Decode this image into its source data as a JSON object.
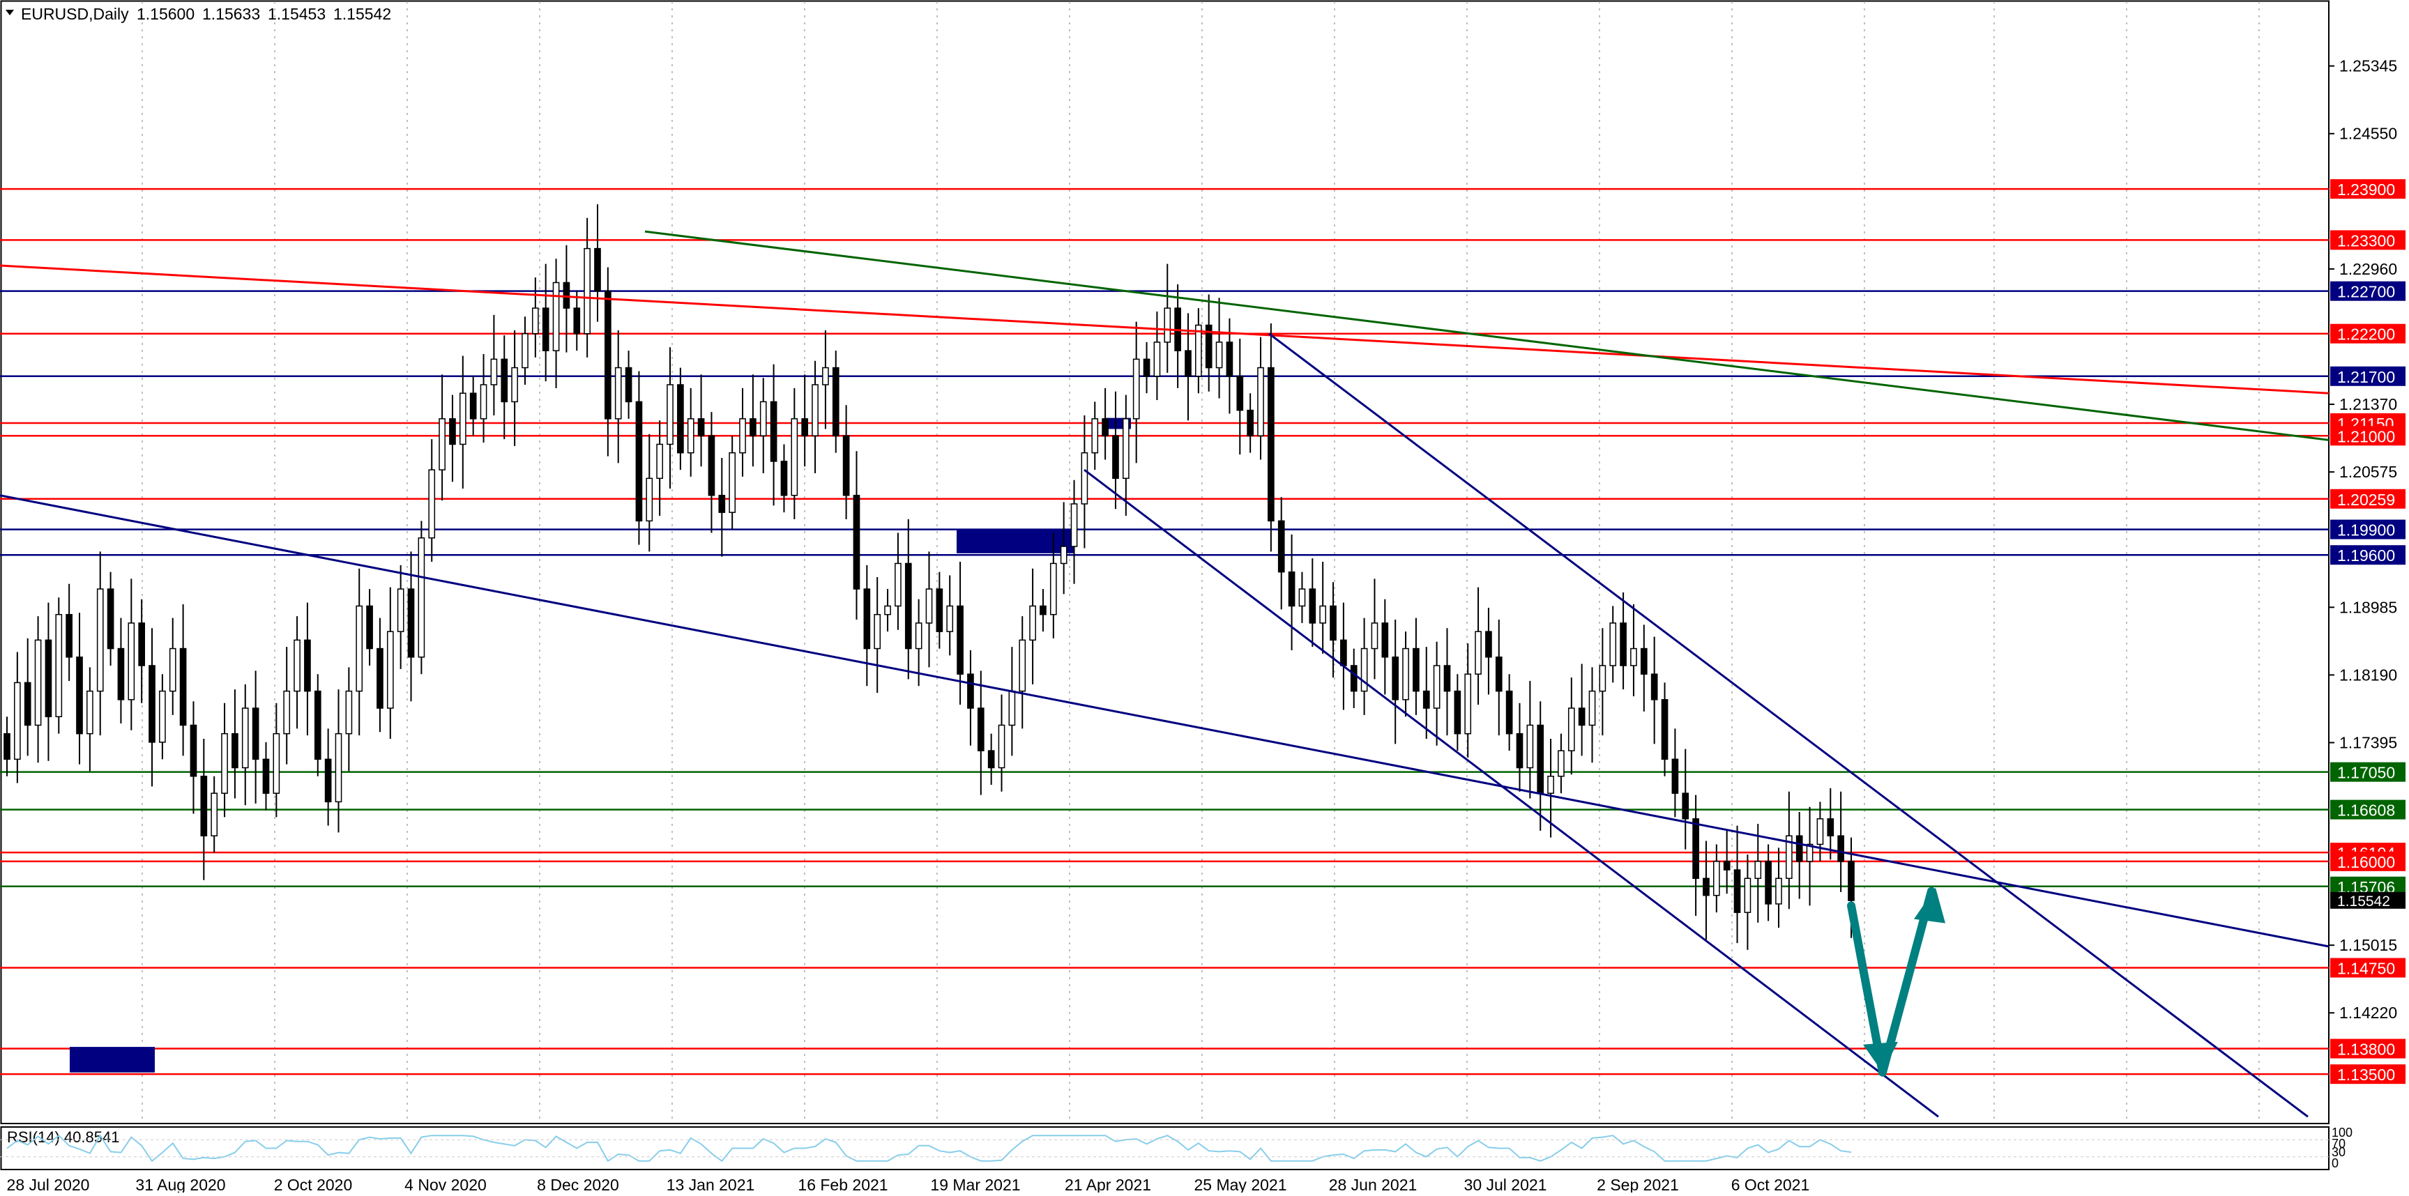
{
  "header": {
    "menu_icon": "triangle-down-icon",
    "symbol": "EURUSD,Daily",
    "open": "1.15600",
    "high": "1.15633",
    "low": "1.15453",
    "close": "1.15542"
  },
  "chart_data": {
    "type": "candlestick",
    "title": "EURUSD,Daily",
    "ylim": [
      1.1292,
      1.2612
    ],
    "y_ticks": [
      "1.25345",
      "1.24550",
      "1.22960",
      "1.21370",
      "1.20575",
      "1.18985",
      "1.18190",
      "1.17395",
      "1.15015",
      "1.14220"
    ],
    "x_ticks": [
      "28 Jul 2020",
      "31 Aug 2020",
      "2 Oct 2020",
      "4 Nov 2020",
      "8 Dec 2020",
      "13 Jan 2021",
      "16 Feb 2021",
      "19 Mar 2021",
      "21 Apr 2021",
      "25 May 2021",
      "28 Jun 2021",
      "30 Jul 2021",
      "2 Sep 2021",
      "6 Oct 2021"
    ],
    "grid": true,
    "price_path": [
      1.172,
      1.181,
      1.176,
      1.186,
      1.177,
      1.189,
      1.184,
      1.175,
      1.18,
      1.192,
      1.185,
      1.179,
      1.188,
      1.183,
      1.174,
      1.18,
      1.185,
      1.176,
      1.17,
      1.163,
      1.168,
      1.175,
      1.171,
      1.178,
      1.172,
      1.168,
      1.175,
      1.18,
      1.186,
      1.18,
      1.172,
      1.167,
      1.175,
      1.18,
      1.19,
      1.185,
      1.178,
      1.187,
      1.192,
      1.184,
      1.198,
      1.206,
      1.212,
      1.209,
      1.215,
      1.212,
      1.216,
      1.219,
      1.214,
      1.218,
      1.222,
      1.225,
      1.22,
      1.228,
      1.225,
      1.222,
      1.232,
      1.227,
      1.212,
      1.218,
      1.214,
      1.2,
      1.205,
      1.209,
      1.216,
      1.208,
      1.212,
      1.21,
      1.203,
      1.201,
      1.208,
      1.212,
      1.21,
      1.214,
      1.207,
      1.203,
      1.212,
      1.21,
      1.216,
      1.218,
      1.21,
      1.203,
      1.192,
      1.185,
      1.189,
      1.19,
      1.195,
      1.185,
      1.188,
      1.192,
      1.187,
      1.19,
      1.182,
      1.178,
      1.173,
      1.171,
      1.176,
      1.18,
      1.186,
      1.19,
      1.189,
      1.195,
      1.197,
      1.202,
      1.208,
      1.212,
      1.21,
      1.205,
      1.212,
      1.219,
      1.217,
      1.221,
      1.225,
      1.22,
      1.217,
      1.223,
      1.218,
      1.221,
      1.217,
      1.213,
      1.21,
      1.218,
      1.2,
      1.194,
      1.19,
      1.192,
      1.188,
      1.19,
      1.186,
      1.183,
      1.18,
      1.185,
      1.188,
      1.184,
      1.179,
      1.185,
      1.18,
      1.178,
      1.183,
      1.18,
      1.175,
      1.182,
      1.187,
      1.184,
      1.18,
      1.175,
      1.171,
      1.176,
      1.168,
      1.17,
      1.173,
      1.178,
      1.176,
      1.18,
      1.183,
      1.188,
      1.183,
      1.185,
      1.182,
      1.179,
      1.172,
      1.168,
      1.165,
      1.158,
      1.156,
      1.16,
      1.159,
      1.154,
      1.158,
      1.16,
      1.155,
      1.158,
      1.163,
      1.16,
      1.162,
      1.165,
      1.163,
      1.16,
      1.1554
    ],
    "horizontal_levels": [
      {
        "value": "1.23900",
        "color": "#ff0000",
        "label_bg": "#ff0000"
      },
      {
        "value": "1.23300",
        "color": "#ff0000",
        "label_bg": "#ff0000"
      },
      {
        "value": "1.22700",
        "color": "#000080",
        "label_bg": "#000080"
      },
      {
        "value": "1.22200",
        "color": "#ff0000",
        "label_bg": "#ff0000"
      },
      {
        "value": "1.21700",
        "color": "#000080",
        "label_bg": "#000080"
      },
      {
        "value": "1.21150",
        "color": "#ff0000",
        "label_bg": "#ff0000"
      },
      {
        "value": "1.21000",
        "color": "#ff0000",
        "label_bg": "#ff0000"
      },
      {
        "value": "1.20259",
        "color": "#ff0000",
        "label_bg": "#ff0000"
      },
      {
        "value": "1.19900",
        "color": "#000080",
        "label_bg": "#000080"
      },
      {
        "value": "1.19600",
        "color": "#000080",
        "label_bg": "#000080"
      },
      {
        "value": "1.17050",
        "color": "#006400",
        "label_bg": "#006400"
      },
      {
        "value": "1.16608",
        "color": "#006400",
        "label_bg": "#006400"
      },
      {
        "value": "1.16104",
        "color": "#ff0000",
        "label_bg": "#ff0000"
      },
      {
        "value": "1.16000",
        "color": "#ff0000",
        "label_bg": "#ff0000"
      },
      {
        "value": "1.15706",
        "color": "#006400",
        "label_bg": "#006400"
      },
      {
        "value": "1.14750",
        "color": "#ff0000",
        "label_bg": "#ff0000"
      },
      {
        "value": "1.13800",
        "color": "#ff0000",
        "label_bg": "#ff0000"
      },
      {
        "value": "1.13500",
        "color": "#ff0000",
        "label_bg": "#ff0000"
      }
    ],
    "current_price": "1.15542",
    "indicator": {
      "name": "RSI(14)",
      "value": "40.8541",
      "scale": [
        "100",
        "70",
        "30",
        "0"
      ]
    },
    "colors": {
      "background": "#ffffff",
      "candle_up": "#ffffff",
      "candle_down": "#000000",
      "trendline_red": "#ff0000",
      "trendline_green": "#006400",
      "trendline_blue": "#000080",
      "arrow": "#008080",
      "rsi": "#87ceeb"
    }
  }
}
